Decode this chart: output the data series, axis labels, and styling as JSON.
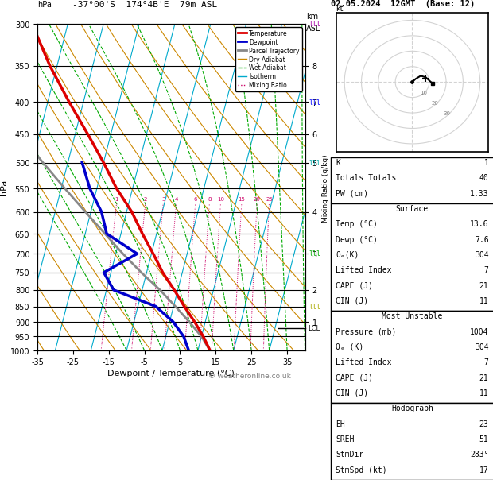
{
  "title_left": "-37°00'S  174°4B'E  79m ASL",
  "title_right": "02.05.2024  12GMT  (Base: 12)",
  "xlabel": "Dewpoint / Temperature (°C)",
  "ylabel_left": "hPa",
  "temp_profile": {
    "pressure": [
      1004,
      950,
      900,
      850,
      800,
      750,
      700,
      650,
      600,
      550,
      500,
      450,
      400,
      350,
      300
    ],
    "temp": [
      13.6,
      10.5,
      7.0,
      3.0,
      -1.0,
      -5.5,
      -9.5,
      -14.0,
      -18.5,
      -24.5,
      -30.0,
      -36.5,
      -44.0,
      -52.0,
      -60.0
    ]
  },
  "dewpoint_profile": {
    "pressure": [
      1004,
      950,
      900,
      850,
      800,
      750,
      700,
      650,
      600,
      550,
      500
    ],
    "temp": [
      7.6,
      5.0,
      1.0,
      -5.0,
      -18.0,
      -22.0,
      -14.0,
      -24.0,
      -27.0,
      -32.0,
      -36.0
    ]
  },
  "parcel_profile": {
    "pressure": [
      1004,
      950,
      900,
      850,
      800,
      750,
      700,
      650,
      600,
      550,
      500,
      450,
      400,
      350,
      300
    ],
    "temp": [
      13.6,
      10.0,
      5.5,
      0.5,
      -5.0,
      -11.5,
      -18.0,
      -24.5,
      -31.5,
      -39.0,
      -47.0,
      -55.5,
      -64.0,
      -73.0,
      -82.5
    ]
  },
  "lcl_pressure": 920,
  "km_labels": [
    "1",
    "2",
    "3",
    "4",
    "5",
    "6",
    "7",
    "8"
  ],
  "km_pressures": [
    900,
    800,
    700,
    600,
    500,
    450,
    400,
    350
  ],
  "mixing_ratios": [
    1,
    2,
    3,
    4,
    6,
    8,
    10,
    15,
    20,
    25
  ],
  "colors": {
    "temp": "#dd0000",
    "dewpoint": "#0000cc",
    "parcel": "#888888",
    "dry_adiabat": "#cc8800",
    "wet_adiabat": "#00aa00",
    "isotherm": "#00aacc",
    "mixing_ratio": "#cc0066"
  },
  "wind_barb_colors": [
    "#aa00aa",
    "#0000ff",
    "#00aaaa",
    "#00aa00",
    "#aaaa00"
  ],
  "wind_barb_pressures": [
    300,
    400,
    500,
    700,
    850
  ],
  "hodograph_u": [
    0,
    2,
    5,
    8,
    10,
    12
  ],
  "hodograph_v": [
    0,
    2,
    4,
    3,
    1,
    -1
  ],
  "hodo_storm_u": 8.0,
  "hodo_storm_v": 2.0
}
